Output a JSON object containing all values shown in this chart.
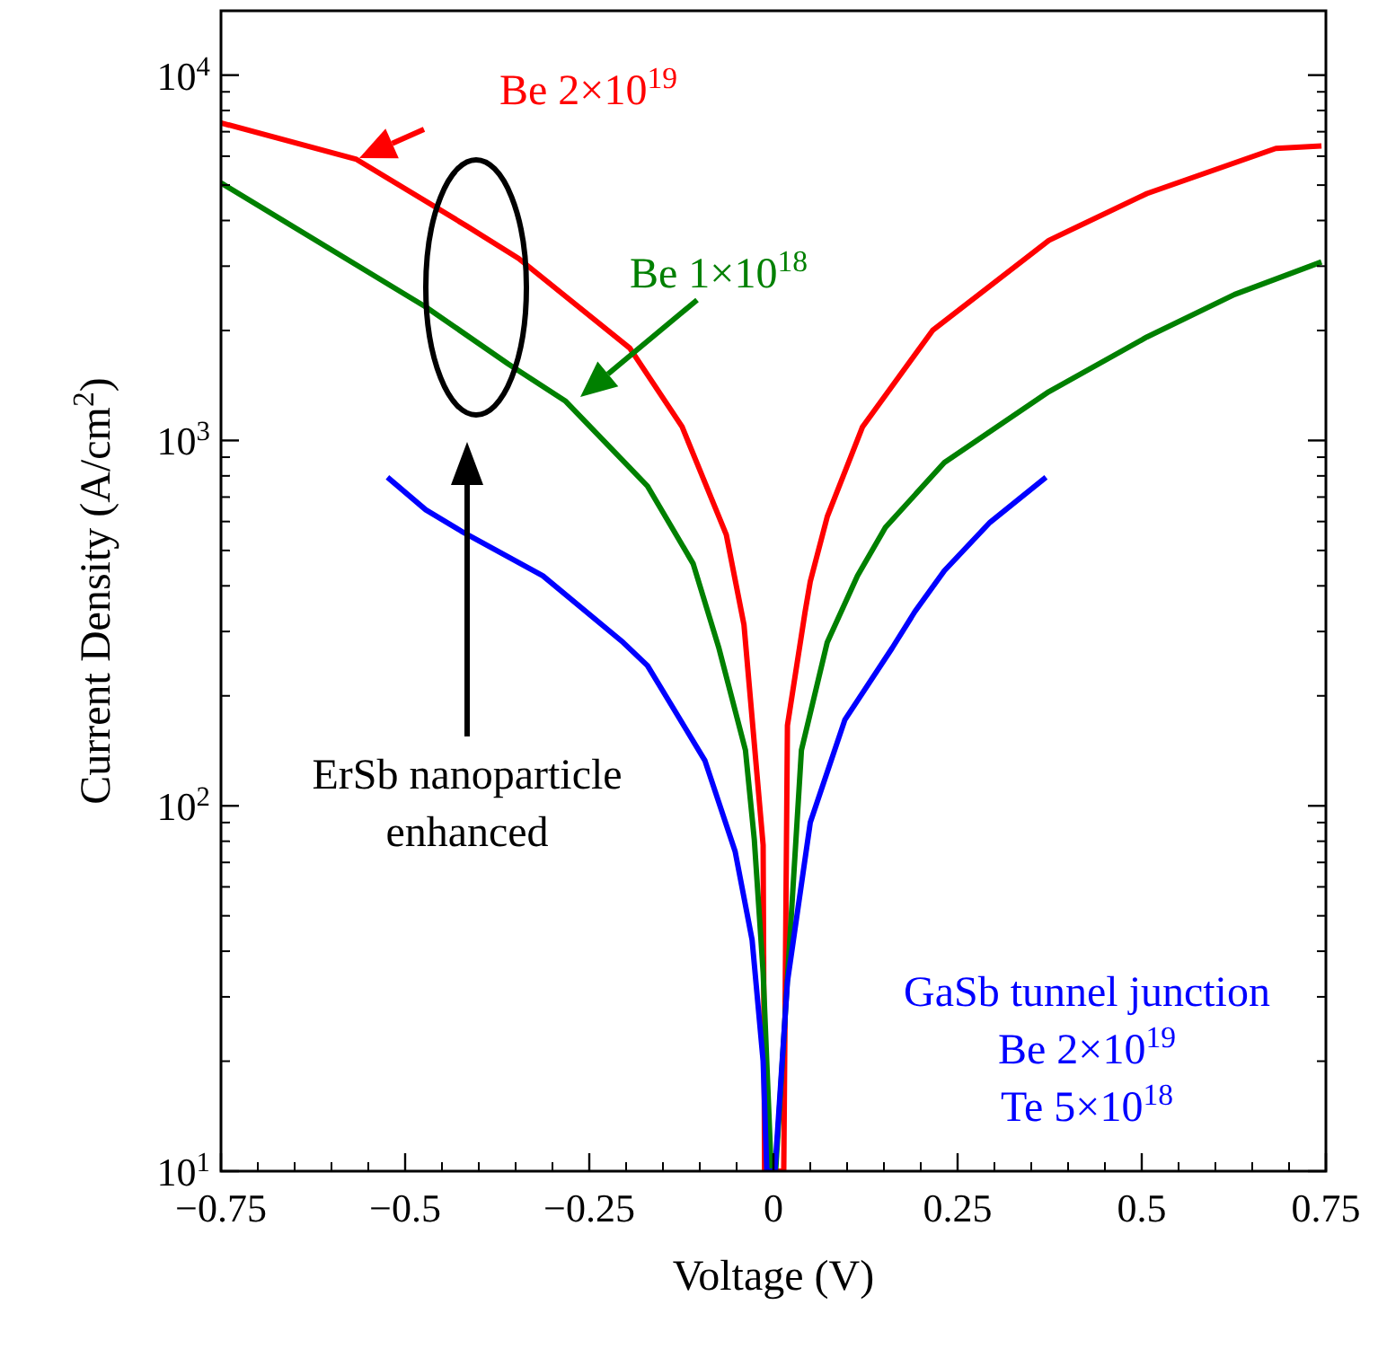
{
  "chart_data": {
    "type": "line",
    "xlabel": "Voltage (V)",
    "ylabel": "Current Density (A/cm$^{2}$)",
    "log": "y",
    "xlim": [
      -0.75,
      0.75
    ],
    "ylim": [
      10,
      15000
    ],
    "xticks": [
      {
        "value": -0.75,
        "label": "−0.75"
      },
      {
        "value": -0.5,
        "label": "−0.5"
      },
      {
        "value": -0.25,
        "label": "−0.25"
      },
      0,
      0.25,
      0.5,
      0.75
    ],
    "yticks": [
      {
        "value": 10,
        "label": "10$^{1}$"
      },
      {
        "value": 100,
        "label": "10$^{2}$"
      },
      {
        "value": 1000,
        "label": "10$^{3}$"
      },
      {
        "value": 10000,
        "label": "10$^{4}$"
      }
    ],
    "grid": false,
    "marker": "none",
    "line_style": "solid",
    "series": [
      {
        "name": "Be 2×10$^{19}$",
        "color": "#ff0000",
        "x": [
          -0.75,
          -0.566,
          -0.417,
          -0.346,
          -0.195,
          -0.124,
          -0.064,
          -0.04,
          -0.014,
          -0.012,
          0.014,
          0.019,
          0.043,
          0.05,
          0.073,
          0.121,
          0.216,
          0.374,
          0.507,
          0.682,
          0.744
        ],
        "values": [
          7400,
          5880,
          3870,
          3150,
          1790,
          1090,
          552,
          313,
          78,
          10,
          10,
          166,
          340,
          411,
          618,
          1090,
          2000,
          3530,
          4740,
          6300,
          6400
        ]
      },
      {
        "name": "Be 1×10$^{18}$",
        "color": "#008000",
        "x": [
          -0.75,
          -0.472,
          -0.36,
          -0.282,
          -0.171,
          -0.109,
          -0.074,
          -0.038,
          -0.026,
          -0.014,
          -0.003,
          0.003,
          0.038,
          0.073,
          0.114,
          0.152,
          0.232,
          0.374,
          0.507,
          0.626,
          0.744
        ],
        "values": [
          5070,
          2320,
          1620,
          1280,
          750,
          460,
          270,
          142,
          81,
          35,
          10,
          10,
          142,
          280,
          426,
          578,
          870,
          1360,
          1920,
          2510,
          3080
        ]
      },
      {
        "name": "GaSb tunnel junction\nBe 2×10$^{19}$\nTe 5×10$^{18}$",
        "color": "#0000ff",
        "x": [
          -0.524,
          -0.472,
          -0.424,
          -0.313,
          -0.204,
          -0.171,
          -0.093,
          -0.052,
          -0.029,
          -0.014,
          -0.009,
          0.002,
          0.019,
          0.05,
          0.097,
          0.161,
          0.192,
          0.232,
          0.294,
          0.37
        ],
        "values": [
          793,
          646,
          565,
          426,
          280,
          242,
          133,
          75,
          43,
          20,
          10,
          10,
          33,
          90,
          172,
          270,
          340,
          440,
          597,
          793
        ]
      }
    ],
    "annotations": [
      "ErSb nanoparticle enhanced"
    ]
  }
}
